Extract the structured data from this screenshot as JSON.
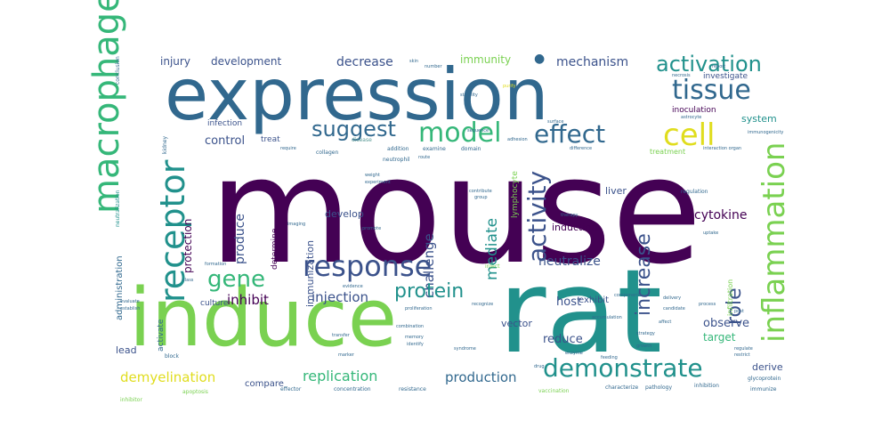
{
  "palette": {
    "dark_purple": "#440154",
    "indigo": "#3b528b",
    "blue": "#31688e",
    "teal": "#21918c",
    "green": "#35b779",
    "lime": "#7ad151",
    "yellow": "#e0dd1e",
    "gray_teal": "#5a9a96"
  },
  "words": {
    "mouse": "mouse",
    "expression": "expression",
    "induce": "induce",
    "rat": "rat",
    "macrophage": "macrophage",
    "receptor": "receptor",
    "response": "response",
    "inflammation": "inflammation",
    "demonstrate": "demonstrate",
    "cell": "cell",
    "tissue": "tissue",
    "activation": "activation",
    "model": "model",
    "effect": "effect",
    "suggest": "suggest",
    "gene": "gene",
    "protein": "protein",
    "activity": "activity",
    "increase": "increase",
    "role": "role",
    "mediate": "mediate",
    "challenge": "challenge",
    "immunization": "immunization",
    "replication": "replication",
    "demyelination": "demyelination",
    "production": "production",
    "injection": "injection",
    "neutralize": "neutralize",
    "inhibit": "inhibit",
    "produce": "produce",
    "protection": "protection",
    "cytokine": "cytokine",
    "decrease": "decrease",
    "mechanism": "mechanism",
    "immunity": "immunity",
    "injury": "injury",
    "development": "development",
    "control": "control",
    "develop": "develop",
    "induction": "induction",
    "observe": "observe",
    "target": "target",
    "reduce": "reduce",
    "host": "host",
    "vector": "vector",
    "derive": "derive",
    "system": "system",
    "inoculation": "inoculation",
    "liver": "liver",
    "exhibit": "exhibit",
    "lead": "lead",
    "compare": "compare",
    "culture": "culture",
    "administration": "administration",
    "activate": "activate",
    "infection": "infection",
    "treat": "treat",
    "determine": "determine",
    "treatment": "treatment",
    "investigate": "investigate",
    "lymphocyte": "lymphocyte",
    "neuron": "neuron",
    "infiltration": "infiltration",
    "expose": "expose",
    "regulation": "regulation",
    "collagen": "collagen",
    "examine": "examine",
    "therapy": "therapy",
    "surface": "surface",
    "adhesion": "adhesion",
    "difference": "difference",
    "inject": "inject",
    "recognize": "recognize",
    "immunogenicity": "immunogenicity",
    "astrocyte": "astrocyte",
    "characterize": "characterize",
    "pathology": "pathology",
    "inhibition": "inhibition",
    "effector": "effector",
    "concentration": "concentration",
    "resistance": "resistance",
    "vaccination": "vaccination",
    "glycoprotein": "glycoprotein",
    "immunize": "immunize",
    "block": "block",
    "neutralization": "neutralization",
    "conclusion": "conclusion",
    "kidney": "kidney",
    "neutrophil": "neutrophil",
    "sequence": "sequence",
    "domain": "domain",
    "addition": "addition",
    "uptake": "uptake",
    "interaction organ": "interaction organ",
    "formation": "formation",
    "class": "class",
    "combination": "combination",
    "proliferation": "proliferation",
    "candidate": "candidate",
    "component": "component",
    "process": "process",
    "delivery": "delivery",
    "strategy": "strategy",
    "growth": "growth",
    "regulate": "regulate",
    "restrict": "restrict",
    "syndrome": "syndrome",
    "enzyme": "enzyme",
    "feeding": "feeding",
    "drug": "drug",
    "transfer": "transfer",
    "identify": "identify",
    "memory": "memory",
    "evidence": "evidence",
    "establish": "establish",
    "evaluate": "evaluate",
    "marker": "marker",
    "apoptosis": "apoptosis",
    "inhibitor": "inhibitor",
    "accumulation": "accumulation",
    "report": "report",
    "necrosis": "necrosis",
    "contribute": "contribute",
    "group": "group",
    "require": "require",
    "disease": "disease",
    "weight": "weight",
    "experiment": "experiment",
    "imaging": "imaging",
    "promote": "promote",
    "route": "route",
    "purify": "purify",
    "stability": "stability",
    "number": "number",
    "skin": "skin",
    "post": "post",
    "affect": "affect",
    "demonstrated": "demonstrated"
  }
}
